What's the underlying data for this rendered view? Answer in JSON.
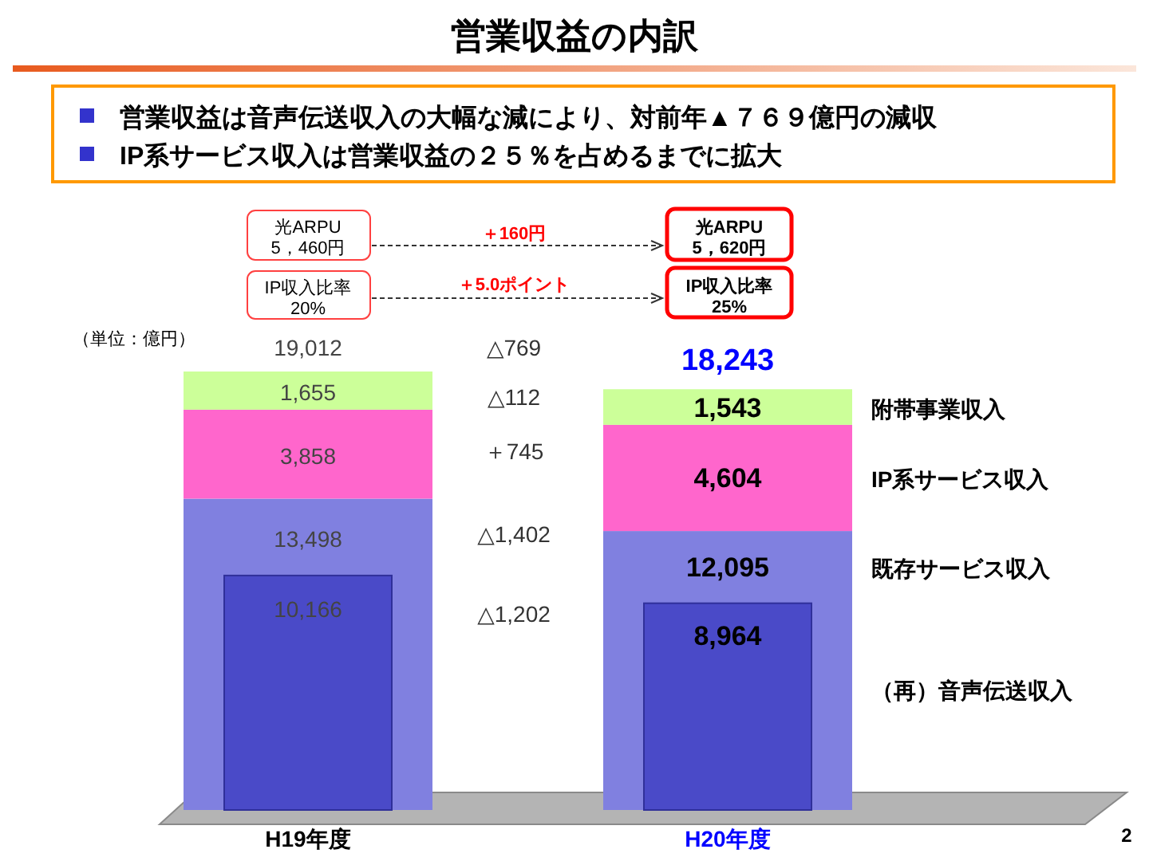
{
  "chart_data": {
    "type": "bar",
    "title": "営業収益の内訳",
    "categories": [
      "H19年度",
      "H20年度"
    ],
    "stacked": true,
    "tick_labels": "x",
    "legend": false,
    "series": [
      {
        "name": "既存サービス収入",
        "color": "#8080e0",
        "values": [
          13498,
          12095
        ],
        "value_labels": [
          "13,498",
          "12,095"
        ]
      },
      {
        "name": "IP系サービス収入",
        "color": "#ff66cc",
        "values": [
          3858,
          4604
        ],
        "value_labels": [
          "3,858",
          "4,604"
        ]
      },
      {
        "name": "附帯事業収入",
        "color": "#ccff99",
        "values": [
          1655,
          1543
        ],
        "value_labels": [
          "1,655",
          "1,543"
        ]
      },
      {
        "name": "（再）音声伝送収入",
        "color": "#4a4ac8",
        "values": [
          10166,
          8964
        ],
        "axis": "y2",
        "value_labels": [
          "10,166",
          "8,964"
        ]
      }
    ],
    "totals": [
      "19,012",
      "18,243"
    ],
    "annotations": [
      "営業収益は音声伝送収入の大幅な減により、対前年▲７６９億円の減収",
      "IP系サービス収入は営業収益の２５％を占めるまでに拡大",
      "光ARPU",
      "5，460円",
      "IP収入比率",
      "20%",
      "＋160円",
      "＋5.0ポイント",
      "光ARPU",
      "5，620円",
      "IP収入比率",
      "25%",
      "（単位：億円）",
      "△769",
      "△112",
      "＋745",
      "△1,402",
      "△1,202",
      "2"
    ]
  }
}
